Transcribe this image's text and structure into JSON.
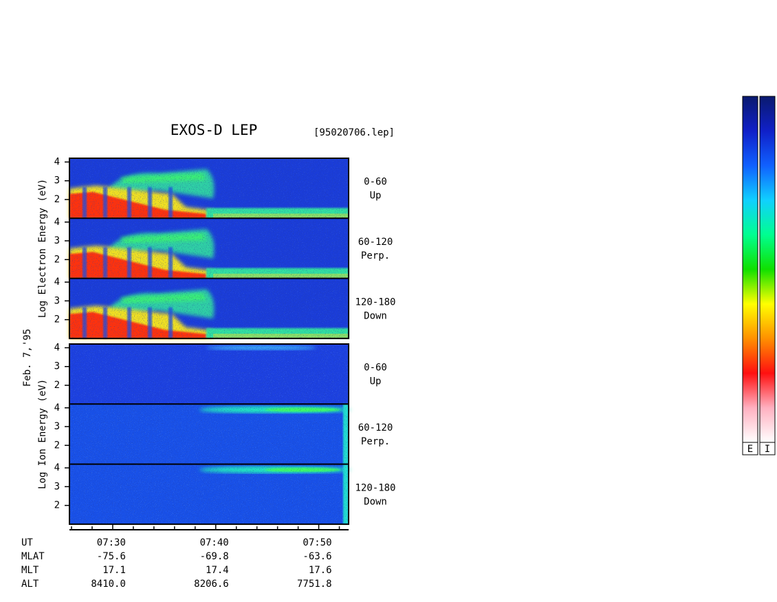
{
  "chart_data": {
    "type": "spectrogram",
    "title": "EXOS-D LEP",
    "file_label": "[95020706.lep]",
    "date_label": "Feb. 7,'95",
    "groups": [
      {
        "ylabel": "Log  Electron  Energy (eV)",
        "kind": "electron",
        "panels": [
          {
            "angle": "0-60",
            "direction": "Up"
          },
          {
            "angle": "60-120",
            "direction": "Perp."
          },
          {
            "angle": "120-180",
            "direction": "Down"
          }
        ]
      },
      {
        "ylabel": "Log  Ion  Energy (eV)",
        "kind": "ion",
        "panels": [
          {
            "angle": "0-60",
            "direction": "Up"
          },
          {
            "angle": "60-120",
            "direction": "Perp."
          },
          {
            "angle": "120-180",
            "direction": "Down"
          }
        ]
      }
    ],
    "ylim": [
      1,
      4.2
    ],
    "yticks": [
      2,
      3,
      4
    ],
    "xlim": [
      25.8,
      52.9
    ],
    "xticks": [
      {
        "value": 30,
        "label": "07:30"
      },
      {
        "value": 40,
        "label": "07:40"
      },
      {
        "value": 50,
        "label": "07:50"
      }
    ],
    "x_minor_ticks": [
      26,
      28,
      32,
      34,
      36,
      38,
      42,
      44,
      46,
      48,
      52
    ],
    "ephemeris": [
      {
        "name": "UT"
      },
      {
        "name": "MLAT",
        "values": [
          "-75.6",
          "-69.8",
          "-63.6"
        ]
      },
      {
        "name": "MLT",
        "values": [
          "17.1",
          "17.4",
          "17.6"
        ]
      },
      {
        "name": "ALT",
        "values": [
          "8410.0",
          "8206.6",
          "7751.8"
        ]
      }
    ],
    "colorbar_labels": [
      "E",
      "I"
    ],
    "colorscale": [
      "#0a1a6e",
      "#1020c8",
      "#1060ff",
      "#10d0ff",
      "#00ff90",
      "#10e000",
      "#ffff00",
      "#ff9000",
      "#ff1010",
      "#ffb0c0",
      "#ffffff"
    ]
  }
}
